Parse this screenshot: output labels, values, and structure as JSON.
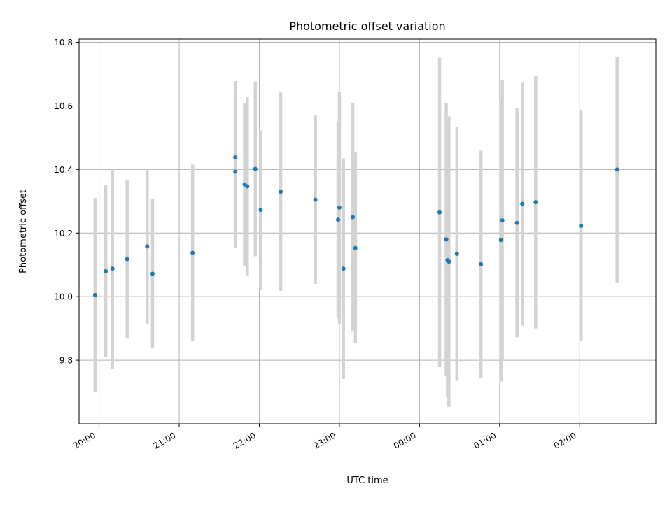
{
  "chart_data": {
    "type": "scatter",
    "title": "Photometric offset variation",
    "xlabel": "UTC time",
    "ylabel": "Photometric offset",
    "grid": true,
    "x_ticks": [
      "20:00",
      "21:00",
      "22:00",
      "23:00",
      "00:00",
      "01:00",
      "02:00"
    ],
    "x_tick_minutes": [
      0,
      60,
      120,
      180,
      240,
      300,
      360
    ],
    "x_range": [
      "19:45",
      "02:57"
    ],
    "y_ticks": [
      "9.8",
      "10.0",
      "10.2",
      "10.4",
      "10.6",
      "10.8"
    ],
    "y_tick_values": [
      9.8,
      10.0,
      10.2,
      10.4,
      10.6,
      10.8
    ],
    "ylim": [
      9.6,
      10.81
    ],
    "marker_color": "#1f77b4",
    "errorbar_color": "#d3d3d3",
    "points": [
      {
        "time": "19:57",
        "y": 10.005,
        "err": 0.305
      },
      {
        "time": "20:05",
        "y": 10.08,
        "err": 0.27
      },
      {
        "time": "20:10",
        "y": 10.088,
        "err": 0.315
      },
      {
        "time": "20:21",
        "y": 10.118,
        "err": 0.25
      },
      {
        "time": "20:36",
        "y": 10.158,
        "err": 0.243
      },
      {
        "time": "20:40",
        "y": 10.072,
        "err": 0.235
      },
      {
        "time": "21:10",
        "y": 10.138,
        "err": 0.277
      },
      {
        "time": "21:42",
        "y": 10.438,
        "err": 0.24
      },
      {
        "time": "21:42",
        "y": 10.393,
        "err": 0.24
      },
      {
        "time": "21:49",
        "y": 10.353,
        "err": 0.257
      },
      {
        "time": "21:51",
        "y": 10.347,
        "err": 0.28
      },
      {
        "time": "21:57",
        "y": 10.402,
        "err": 0.275
      },
      {
        "time": "22:01",
        "y": 10.273,
        "err": 0.25
      },
      {
        "time": "22:16",
        "y": 10.33,
        "err": 0.312
      },
      {
        "time": "22:42",
        "y": 10.305,
        "err": 0.265
      },
      {
        "time": "22:59",
        "y": 10.242,
        "err": 0.31
      },
      {
        "time": "23:00",
        "y": 10.28,
        "err": 0.365
      },
      {
        "time": "23:03",
        "y": 10.088,
        "err": 0.347
      },
      {
        "time": "23:10",
        "y": 10.25,
        "err": 0.36
      },
      {
        "time": "23:12",
        "y": 10.153,
        "err": 0.3
      },
      {
        "time": "00:15",
        "y": 10.265,
        "err": 0.487
      },
      {
        "time": "00:20",
        "y": 10.18,
        "err": 0.43
      },
      {
        "time": "00:21",
        "y": 10.115,
        "err": 0.43
      },
      {
        "time": "00:22",
        "y": 10.11,
        "err": 0.457
      },
      {
        "time": "00:28",
        "y": 10.135,
        "err": 0.4
      },
      {
        "time": "00:46",
        "y": 10.102,
        "err": 0.357
      },
      {
        "time": "01:01",
        "y": 10.178,
        "err": 0.445
      },
      {
        "time": "01:02",
        "y": 10.24,
        "err": 0.44
      },
      {
        "time": "01:13",
        "y": 10.232,
        "err": 0.36
      },
      {
        "time": "01:17",
        "y": 10.292,
        "err": 0.383
      },
      {
        "time": "01:27",
        "y": 10.297,
        "err": 0.397
      },
      {
        "time": "02:01",
        "y": 10.223,
        "err": 0.363
      },
      {
        "time": "02:28",
        "y": 10.4,
        "err": 0.355
      }
    ]
  }
}
